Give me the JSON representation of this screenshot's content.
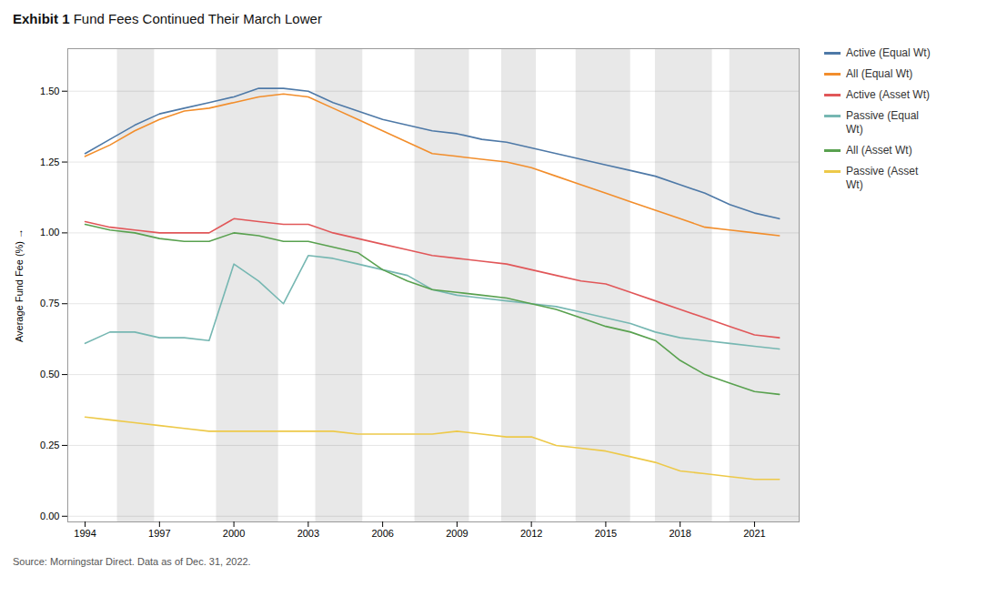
{
  "chart_data": {
    "type": "line",
    "title": "Exhibit 1",
    "subtitle": "Fund Fees Continued Their March Lower",
    "caption": "Source: Morningstar Direct. Data as of Dec. 31, 2022.",
    "ylabel": "Average Fund Fee (%)",
    "x": [
      1994,
      1995,
      1996,
      1997,
      1998,
      1999,
      2000,
      2001,
      2002,
      2003,
      2004,
      2005,
      2006,
      2007,
      2008,
      2009,
      2010,
      2011,
      2012,
      2013,
      2014,
      2015,
      2016,
      2017,
      2018,
      2019,
      2020,
      2021,
      2022
    ],
    "xlim": [
      1993.3,
      2022.8
    ],
    "xticks": [
      1994,
      1997,
      2000,
      2003,
      2006,
      2009,
      2012,
      2015,
      2018,
      2021
    ],
    "ylim": [
      -0.02,
      1.65
    ],
    "yticks": [
      {
        "value": 0.0,
        "label": "0.00"
      },
      {
        "value": 0.25,
        "label": "0.25"
      },
      {
        "value": 0.5,
        "label": "0.50"
      },
      {
        "value": 0.75,
        "label": "0.75"
      },
      {
        "value": 1.0,
        "label": "1.00"
      },
      {
        "value": 1.25,
        "label": "1.25"
      },
      {
        "value": 1.5,
        "label": "1.50"
      }
    ],
    "grid": "y",
    "legend": "right",
    "shaded_regions": [
      [
        1995.3,
        1996.8
      ],
      [
        1999.3,
        2001.8
      ],
      [
        2003.3,
        2005.2
      ],
      [
        2007.3,
        2009.5
      ],
      [
        2010.8,
        2012.2
      ],
      [
        2013.8,
        2016.0
      ],
      [
        2017.0,
        2019.3
      ],
      [
        2020.0,
        2022.8
      ]
    ],
    "series": [
      {
        "name": "Active (Equal Wt)",
        "values": [
          1.28,
          1.33,
          1.38,
          1.42,
          1.44,
          1.46,
          1.48,
          1.51,
          1.51,
          1.5,
          1.46,
          1.43,
          1.4,
          1.38,
          1.36,
          1.35,
          1.33,
          1.32,
          1.3,
          1.28,
          1.26,
          1.24,
          1.22,
          1.2,
          1.17,
          1.14,
          1.1,
          1.07,
          1.05
        ]
      },
      {
        "name": "All (Equal Wt)",
        "values": [
          1.27,
          1.31,
          1.36,
          1.4,
          1.43,
          1.44,
          1.46,
          1.48,
          1.49,
          1.48,
          1.44,
          1.4,
          1.36,
          1.32,
          1.28,
          1.27,
          1.26,
          1.25,
          1.23,
          1.2,
          1.17,
          1.14,
          1.11,
          1.08,
          1.05,
          1.02,
          1.01,
          1.0,
          0.99
        ]
      },
      {
        "name": "Active (Asset Wt)",
        "values": [
          1.04,
          1.02,
          1.01,
          1.0,
          1.0,
          1.0,
          1.05,
          1.04,
          1.03,
          1.03,
          1.0,
          0.98,
          0.96,
          0.94,
          0.92,
          0.91,
          0.9,
          0.89,
          0.87,
          0.85,
          0.83,
          0.82,
          0.79,
          0.76,
          0.73,
          0.7,
          0.67,
          0.64,
          0.63
        ]
      },
      {
        "name": "Passive (Equal\nWt)",
        "values": [
          0.61,
          0.65,
          0.65,
          0.63,
          0.63,
          0.62,
          0.89,
          0.83,
          0.75,
          0.92,
          0.91,
          0.89,
          0.87,
          0.85,
          0.8,
          0.78,
          0.77,
          0.76,
          0.75,
          0.74,
          0.72,
          0.7,
          0.68,
          0.65,
          0.63,
          0.62,
          0.61,
          0.6,
          0.59
        ]
      },
      {
        "name": "All (Asset Wt)",
        "values": [
          1.03,
          1.01,
          1.0,
          0.98,
          0.97,
          0.97,
          1.0,
          0.99,
          0.97,
          0.97,
          0.95,
          0.93,
          0.87,
          0.83,
          0.8,
          0.79,
          0.78,
          0.77,
          0.75,
          0.73,
          0.7,
          0.67,
          0.65,
          0.62,
          0.55,
          0.5,
          0.47,
          0.44,
          0.43
        ]
      },
      {
        "name": "Passive (Asset\nWt)",
        "values": [
          0.35,
          0.34,
          0.33,
          0.32,
          0.31,
          0.3,
          0.3,
          0.3,
          0.3,
          0.3,
          0.3,
          0.29,
          0.29,
          0.29,
          0.29,
          0.3,
          0.29,
          0.28,
          0.28,
          0.25,
          0.24,
          0.23,
          0.21,
          0.19,
          0.16,
          0.15,
          0.14,
          0.13,
          0.13
        ]
      }
    ]
  }
}
